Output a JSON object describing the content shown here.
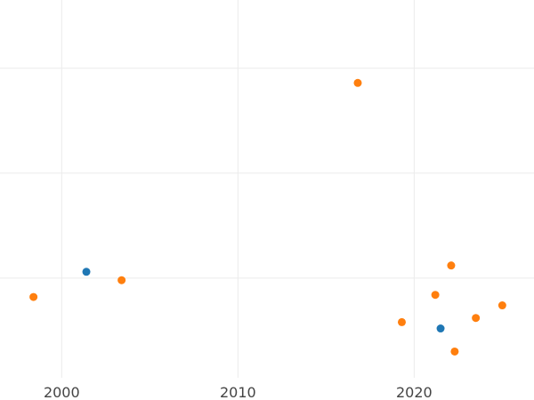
{
  "chart_data": {
    "type": "scatter",
    "title": "",
    "xlabel": "",
    "ylabel": "",
    "xlim": [
      1996.5,
      2026.8
    ],
    "ylim": [
      -0.95,
      2.65
    ],
    "grid": true,
    "x_ticks": [
      2000,
      2010,
      2020
    ],
    "x_tick_labels": [
      "2000",
      "2010",
      "2020"
    ],
    "y_gridlines": [
      0,
      1,
      2
    ],
    "series": [
      {
        "color": "#1f77b4",
        "points": [
          {
            "x": 2001.4,
            "y": 0.06
          },
          {
            "x": 2021.5,
            "y": -0.48
          }
        ]
      },
      {
        "color": "#ff7f0e",
        "points": [
          {
            "x": 1998.4,
            "y": -0.18
          },
          {
            "x": 2003.4,
            "y": -0.02
          },
          {
            "x": 2016.8,
            "y": 1.86
          },
          {
            "x": 2019.3,
            "y": -0.42
          },
          {
            "x": 2021.2,
            "y": -0.16
          },
          {
            "x": 2022.1,
            "y": 0.12
          },
          {
            "x": 2022.3,
            "y": -0.7
          },
          {
            "x": 2023.5,
            "y": -0.38
          },
          {
            "x": 2025.0,
            "y": -0.26
          }
        ]
      }
    ]
  }
}
